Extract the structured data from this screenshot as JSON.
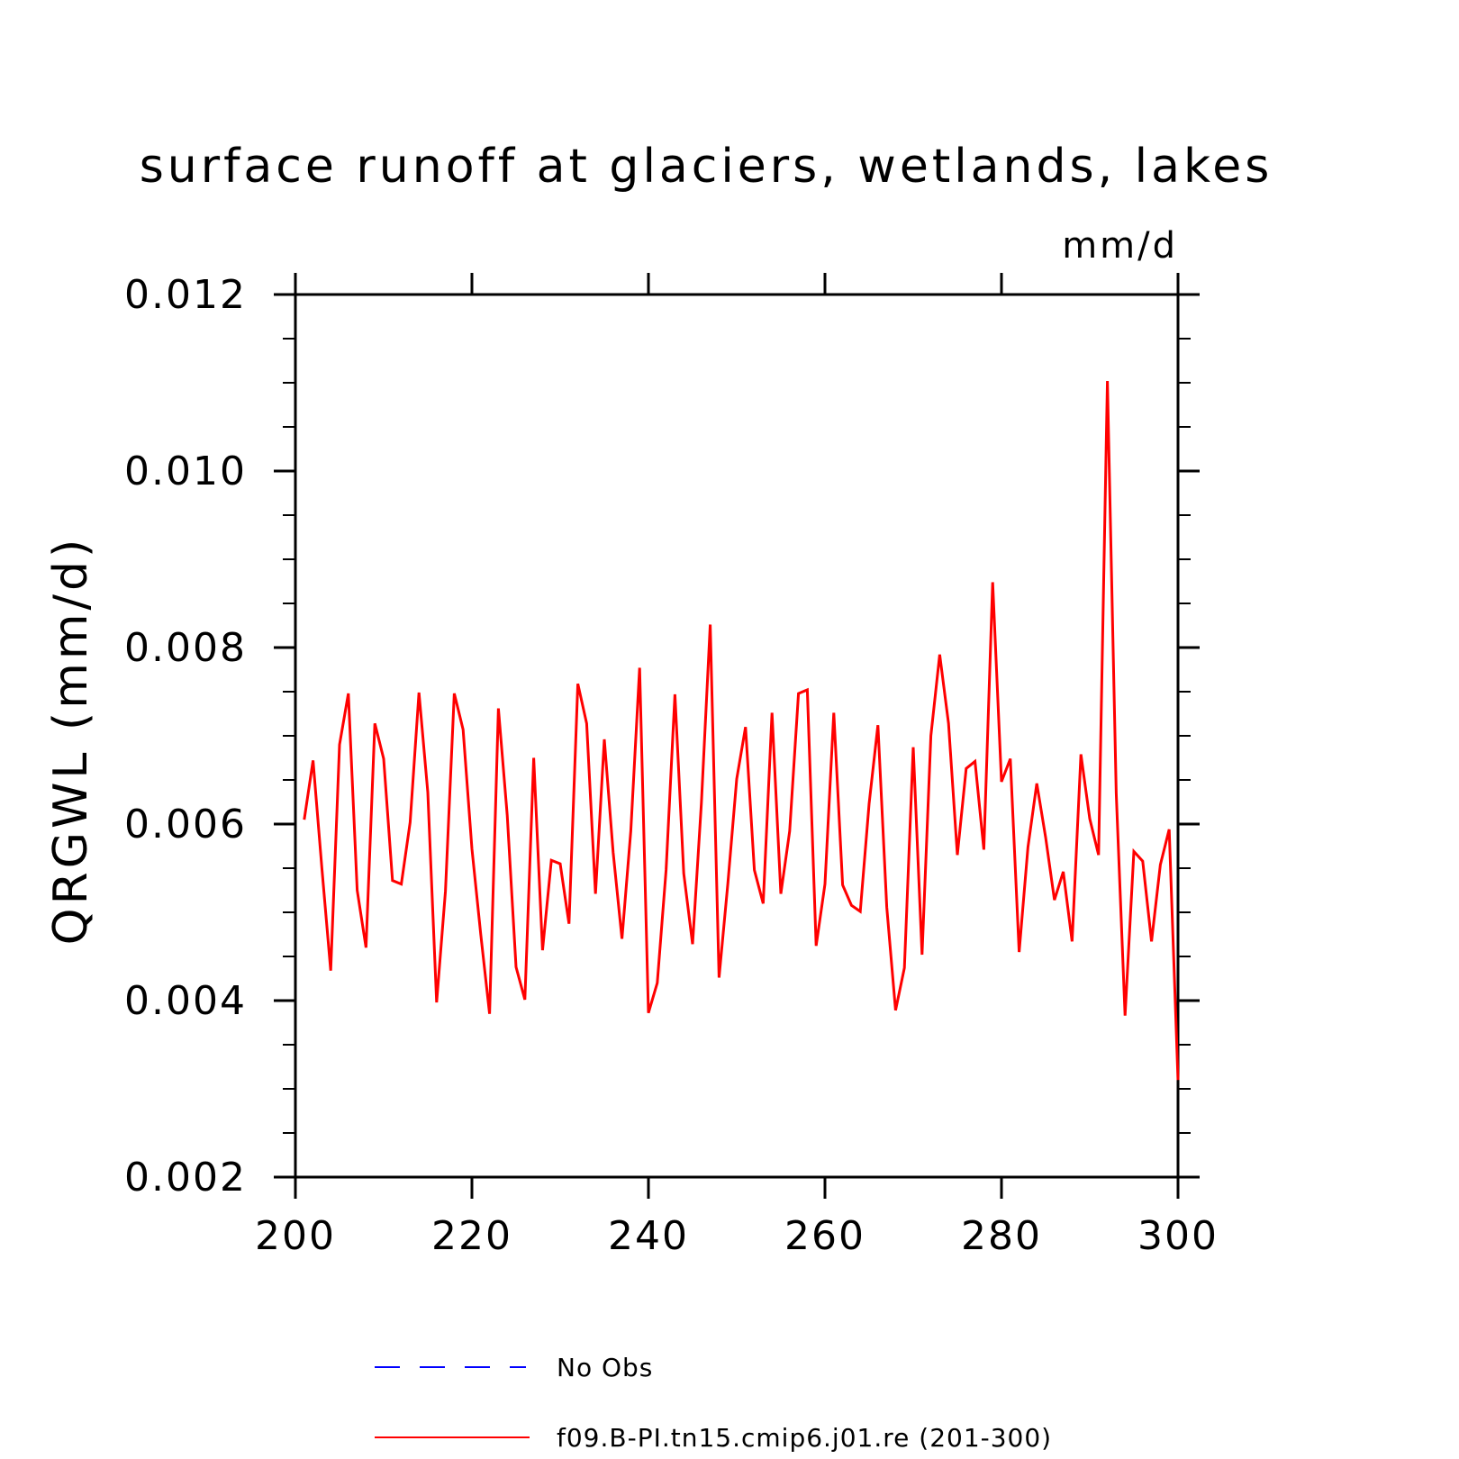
{
  "chart_data": {
    "type": "line",
    "title": "surface runoff at glaciers, wetlands, lakes",
    "units": "mm/d",
    "ylabel": "QRGWL  (mm/d)",
    "xlabel": "",
    "xlim": [
      200,
      300
    ],
    "ylim": [
      0.002,
      0.012
    ],
    "x_ticks": [
      "200",
      "220",
      "240",
      "260",
      "280",
      "300"
    ],
    "y_ticks": [
      "0.012",
      "0.010",
      "0.008",
      "0.006",
      "0.004",
      "0.002"
    ],
    "grid": false,
    "legend_position": "bottom",
    "legend": [
      {
        "name": "No Obs",
        "color": "#0000ff",
        "style": "dashed"
      },
      {
        "name": "f09.B-PI.tn15.cmip6.j01.re (201-300)",
        "color": "#ff0000",
        "style": "solid"
      }
    ],
    "series": [
      {
        "name": "f09.B-PI.tn15.cmip6.j01.re (201-300)",
        "color": "#ff0000",
        "x": [
          201,
          202,
          203,
          204,
          205,
          206,
          207,
          208,
          209,
          210,
          211,
          212,
          213,
          214,
          215,
          216,
          217,
          218,
          219,
          220,
          221,
          222,
          223,
          224,
          225,
          226,
          227,
          228,
          229,
          230,
          231,
          232,
          233,
          234,
          235,
          236,
          237,
          238,
          239,
          240,
          241,
          242,
          243,
          244,
          245,
          246,
          247,
          248,
          249,
          250,
          251,
          252,
          253,
          254,
          255,
          256,
          257,
          258,
          259,
          260,
          261,
          262,
          263,
          264,
          265,
          266,
          267,
          268,
          269,
          270,
          271,
          272,
          273,
          274,
          275,
          276,
          277,
          278,
          279,
          280,
          281,
          282,
          283,
          284,
          285,
          286,
          287,
          288,
          289,
          290,
          291,
          292,
          293,
          294,
          295,
          296,
          297,
          298,
          299,
          300
        ],
        "values": [
          0.00605,
          0.00672,
          0.0055,
          0.00434,
          0.0069,
          0.00748,
          0.00525,
          0.0046,
          0.00714,
          0.00674,
          0.00536,
          0.00532,
          0.00602,
          0.00749,
          0.00636,
          0.00398,
          0.00524,
          0.00748,
          0.00707,
          0.00572,
          0.00475,
          0.00385,
          0.00731,
          0.0061,
          0.00438,
          0.00401,
          0.00675,
          0.00457,
          0.00559,
          0.00555,
          0.00487,
          0.00759,
          0.00714,
          0.00521,
          0.00696,
          0.00568,
          0.0047,
          0.00592,
          0.00777,
          0.00386,
          0.0042,
          0.00548,
          0.00747,
          0.00544,
          0.00464,
          0.00624,
          0.00826,
          0.00426,
          0.00533,
          0.00651,
          0.0071,
          0.00548,
          0.0051,
          0.00726,
          0.00521,
          0.00592,
          0.00748,
          0.00752,
          0.00462,
          0.00532,
          0.00726,
          0.00531,
          0.00508,
          0.00501,
          0.00623,
          0.00712,
          0.00506,
          0.00389,
          0.00437,
          0.00687,
          0.00452,
          0.007,
          0.00792,
          0.00714,
          0.00565,
          0.00663,
          0.00671,
          0.00571,
          0.00874,
          0.00648,
          0.00674,
          0.00455,
          0.00574,
          0.00646,
          0.00585,
          0.00514,
          0.00546,
          0.00467,
          0.00679,
          0.00606,
          0.00565,
          0.01102,
          0.00635,
          0.00383,
          0.00569,
          0.00558,
          0.00467,
          0.00554,
          0.00594,
          0.0031
        ]
      }
    ]
  }
}
